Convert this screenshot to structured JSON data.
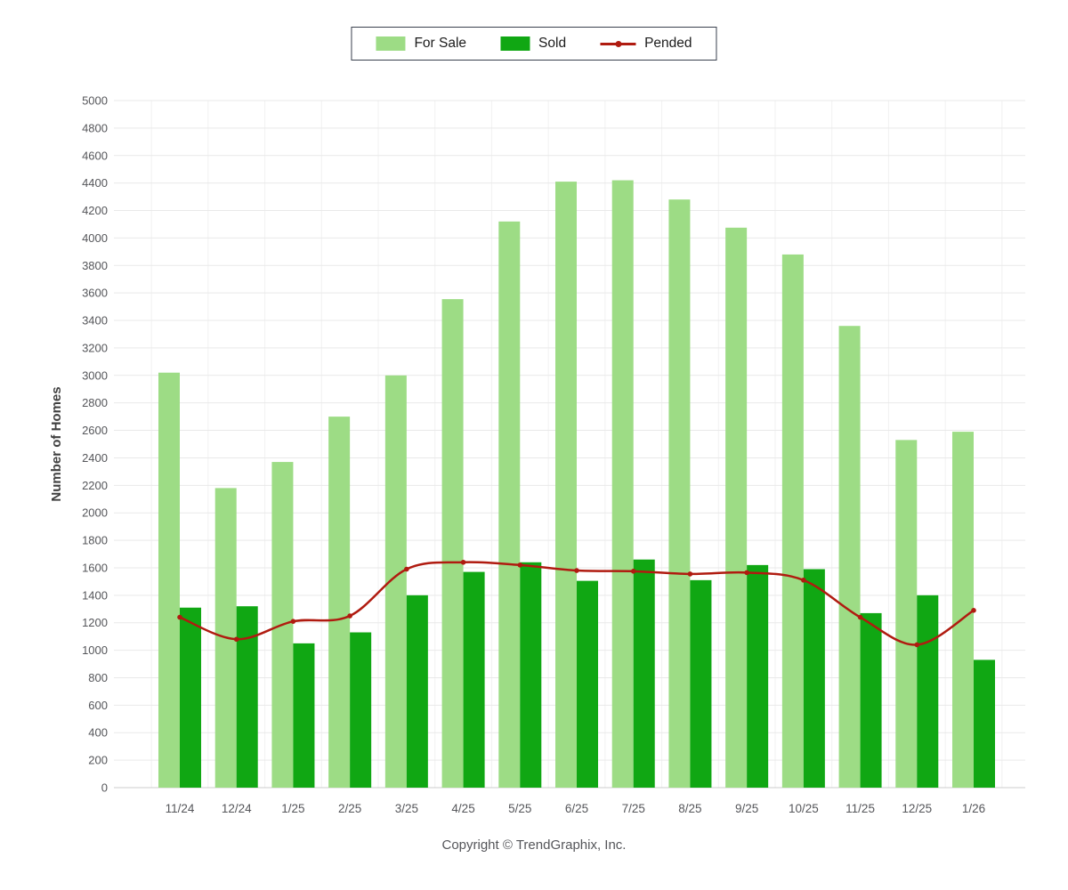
{
  "legend": {
    "items": [
      {
        "label": "For Sale",
        "color": "#9ddc85",
        "type": "swatch"
      },
      {
        "label": "Sold",
        "color": "#10a713",
        "type": "swatch"
      },
      {
        "label": "Pended",
        "color": "#b01b10",
        "type": "line"
      }
    ]
  },
  "y_axis": {
    "label": "Number of Homes",
    "min": 0,
    "max": 5000,
    "step": 200
  },
  "footer": {
    "copyright": "Copyright © TrendGraphix, Inc."
  },
  "colors": {
    "grid_h": "#e9e9e9",
    "grid_v": "#f1f1f1",
    "baseline": "#cccccc",
    "axis_text": "#55565a",
    "ylabel_text": "#404040",
    "background": "#ffffff"
  },
  "chart_data": {
    "type": "bar+line",
    "title": "",
    "xlabel": "",
    "ylabel": "Number of Homes",
    "ylim": [
      0,
      5000
    ],
    "ytick_step": 200,
    "grid": true,
    "legend_position": "top-center",
    "categories": [
      "11/24",
      "12/24",
      "1/25",
      "2/25",
      "3/25",
      "4/25",
      "5/25",
      "6/25",
      "7/25",
      "8/25",
      "9/25",
      "10/25",
      "11/25",
      "12/25",
      "1/26"
    ],
    "series": [
      {
        "name": "For Sale",
        "type": "bar",
        "color": "#9ddc85",
        "values": [
          3020,
          2180,
          2370,
          2700,
          3000,
          3555,
          4120,
          4410,
          4420,
          4280,
          4075,
          3880,
          3360,
          2530,
          2590
        ]
      },
      {
        "name": "Sold",
        "type": "bar",
        "color": "#10a713",
        "values": [
          1310,
          1320,
          1050,
          1130,
          1400,
          1570,
          1640,
          1505,
          1660,
          1510,
          1620,
          1590,
          1270,
          1400,
          930
        ]
      },
      {
        "name": "Pended",
        "type": "line",
        "color": "#b01b10",
        "values": [
          1240,
          1080,
          1210,
          1250,
          1590,
          1640,
          1620,
          1580,
          1575,
          1555,
          1565,
          1510,
          1240,
          1040,
          1290
        ]
      }
    ]
  }
}
